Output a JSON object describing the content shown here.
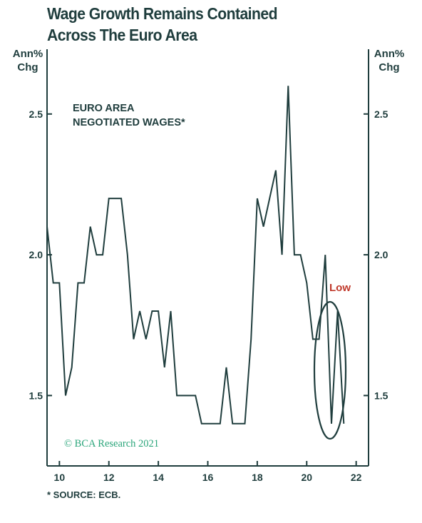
{
  "title_lines": [
    "Wage Growth Remains Contained",
    "Across The Euro Area"
  ],
  "y_unit_left": [
    "Ann%",
    "Chg"
  ],
  "y_unit_right": [
    "Ann%",
    "Chg"
  ],
  "series_label": [
    "EURO AREA",
    "NEGOTIATED WAGES*"
  ],
  "annotation": "Low",
  "copyright": "© BCA Research 2021",
  "footnote": "* SOURCE: ECB.",
  "colors": {
    "line": "#1f3d3d",
    "annotation": "#c0392b",
    "copyright": "#2aa57a",
    "text": "#1f3d3d"
  },
  "chart_data": {
    "type": "line",
    "x_tick_labels": [
      "10",
      "12",
      "14",
      "16",
      "18",
      "20",
      "22"
    ],
    "y_tick_labels": [
      "1.5",
      "2.0",
      "2.5"
    ],
    "xlim": [
      2009.5,
      2022.5
    ],
    "ylim": [
      1.25,
      2.73
    ],
    "y_ticks": [
      1.5,
      2.0,
      2.5
    ],
    "x_ticks": [
      2010,
      2012,
      2014,
      2016,
      2018,
      2020,
      2022
    ],
    "grid": false,
    "dual_y_axis": true,
    "series": [
      {
        "x": [
          2009.5,
          2009.75,
          2010.0,
          2010.25,
          2010.5,
          2010.75,
          2011.0,
          2011.25,
          2011.5,
          2011.75,
          2012.0,
          2012.25,
          2012.5,
          2012.75,
          2013.0,
          2013.25,
          2013.5,
          2013.75,
          2014.0,
          2014.25,
          2014.5,
          2014.75,
          2015.0,
          2015.25,
          2015.5,
          2015.75,
          2016.0,
          2016.25,
          2016.5,
          2016.75,
          2017.0,
          2017.25,
          2017.5,
          2017.75,
          2018.0,
          2018.25,
          2018.5,
          2018.75,
          2019.0,
          2019.25,
          2019.5,
          2019.75,
          2020.0,
          2020.25,
          2020.5,
          2020.75,
          2021.0,
          2021.25,
          2021.5
        ],
        "y": [
          2.1,
          1.9,
          1.9,
          1.5,
          1.6,
          1.9,
          1.9,
          2.1,
          2.0,
          2.0,
          2.2,
          2.2,
          2.2,
          2.0,
          1.7,
          1.8,
          1.7,
          1.8,
          1.8,
          1.6,
          1.8,
          1.5,
          1.5,
          1.5,
          1.5,
          1.4,
          1.4,
          1.4,
          1.4,
          1.6,
          1.4,
          1.4,
          1.4,
          1.7,
          2.2,
          2.1,
          2.2,
          2.3,
          2.0,
          2.6,
          2.0,
          2.0,
          1.9,
          1.7,
          1.7,
          2.0,
          1.4,
          1.8,
          1.4
        ]
      }
    ]
  }
}
